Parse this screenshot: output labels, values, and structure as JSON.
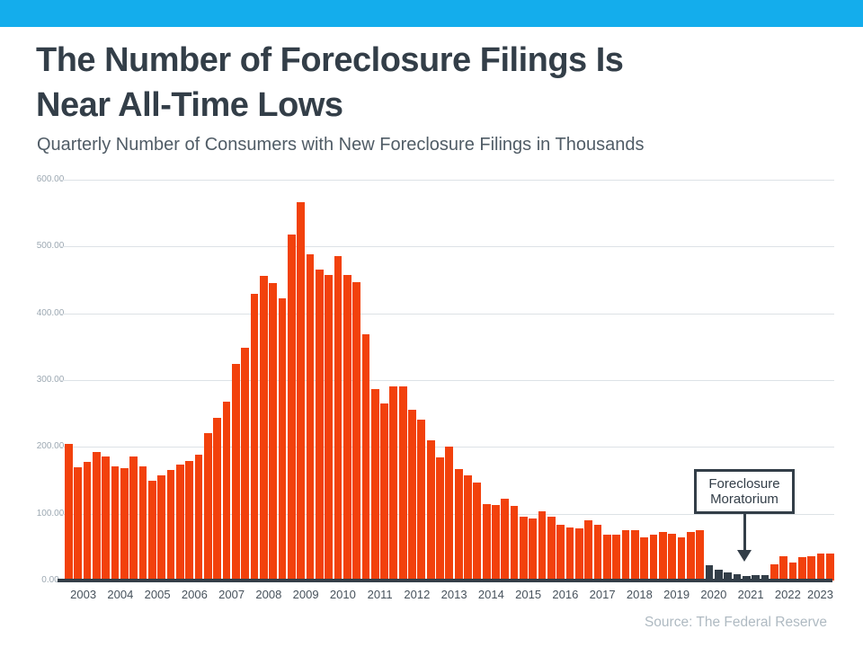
{
  "banner": {
    "color": "#14ADEC"
  },
  "header": {
    "title_line1": "The Number of Foreclosure Filings Is",
    "title_line2": "Near All-Time Lows",
    "subtitle": "Quarterly Number of Consumers with New Foreclosure Filings in Thousands"
  },
  "chart_data": {
    "type": "bar",
    "title": "The Number of Foreclosure Filings Is Near All-Time Lows",
    "subtitle": "Quarterly Number of Consumers with New Foreclosure Filings in Thousands",
    "values_unit": "thousands of consumers with new foreclosure filings per quarter",
    "x_start": "2003 Q1",
    "x_end": "2023 Q3",
    "years": [
      "2003",
      "2004",
      "2005",
      "2006",
      "2007",
      "2008",
      "2009",
      "2010",
      "2011",
      "2012",
      "2013",
      "2014",
      "2015",
      "2016",
      "2017",
      "2018",
      "2019",
      "2020",
      "2021",
      "2022",
      "2023"
    ],
    "quarters_per_year": [
      4,
      4,
      4,
      4,
      4,
      4,
      4,
      4,
      4,
      4,
      4,
      4,
      4,
      4,
      4,
      4,
      4,
      4,
      4,
      4,
      3
    ],
    "values": [
      204,
      170,
      178,
      193,
      186,
      171,
      168,
      185,
      171,
      149,
      158,
      166,
      173,
      179,
      189,
      220,
      243,
      268,
      324,
      348,
      429,
      456,
      445,
      423,
      518,
      566,
      489,
      465,
      458,
      485,
      457,
      446,
      369,
      286,
      265,
      290,
      291,
      255,
      241,
      210,
      184,
      200,
      167,
      158,
      146,
      115,
      113,
      122,
      112,
      96,
      93,
      103,
      96,
      83,
      79,
      78,
      90,
      83,
      69,
      68,
      76,
      75,
      64,
      68,
      72,
      70,
      64,
      72,
      76,
      23,
      16,
      12,
      10,
      7,
      8,
      8,
      24,
      36,
      27,
      35,
      37,
      40,
      41
    ],
    "ylim": [
      0,
      600
    ],
    "yticks": [
      {
        "v": 600,
        "label": "600.00"
      },
      {
        "v": 500,
        "label": "500.00"
      },
      {
        "v": 400,
        "label": "400.00"
      },
      {
        "v": 300,
        "label": "300.00"
      },
      {
        "v": 200,
        "label": "200.00"
      },
      {
        "v": 100,
        "label": "100.00"
      },
      {
        "v": 0,
        "label": "0.00"
      }
    ],
    "grid": true,
    "legend": "none",
    "bar_color": "#F2410C",
    "highlight": {
      "label": "Foreclosure Moratorium",
      "color": "#333E48",
      "start_index": 69,
      "end_index": 75,
      "first_quarter": "2020 Q2",
      "last_quarter": "2021 Q4"
    }
  },
  "annotation": {
    "line1": "Foreclosure",
    "line2": "Moratorium"
  },
  "source": {
    "text": "Source: The Federal Reserve"
  }
}
